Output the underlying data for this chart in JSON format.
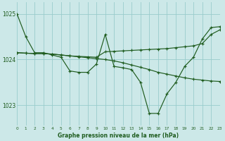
{
  "title": "Graphe pression niveau de la mer (hPa)",
  "background_color": "#cce8e8",
  "grid_color": "#99cccc",
  "line_color": "#1f5c1f",
  "xlim": [
    0,
    23
  ],
  "ylim": [
    1022.55,
    1025.25
  ],
  "yticks": [
    1023,
    1024,
    1025
  ],
  "xticks": [
    0,
    1,
    2,
    3,
    4,
    5,
    6,
    7,
    8,
    9,
    10,
    11,
    12,
    13,
    14,
    15,
    16,
    17,
    18,
    19,
    20,
    21,
    22,
    23
  ],
  "series": [
    [
      1025.0,
      1024.5,
      1024.15,
      1024.15,
      1024.1,
      1024.05,
      1023.75,
      1023.72,
      1023.72,
      1023.9,
      1024.55,
      1023.85,
      1023.82,
      1023.78,
      1023.5,
      1022.82,
      1022.82,
      1023.25,
      1023.5,
      1023.85,
      1024.05,
      1024.45,
      1024.7,
      1024.72
    ],
    [
      1024.15,
      1024.14,
      1024.13,
      1024.13,
      1024.12,
      1024.1,
      1024.08,
      1024.07,
      1024.06,
      1024.05,
      1024.17,
      1024.18,
      1024.19,
      1024.2,
      1024.21,
      1024.22,
      1024.23,
      1024.24,
      1024.26,
      1024.28,
      1024.3,
      1024.35,
      1024.55,
      1024.65
    ],
    [
      1024.15,
      1024.14,
      1024.13,
      1024.13,
      1024.12,
      1024.1,
      1024.08,
      1024.06,
      1024.04,
      1024.02,
      1024.0,
      1023.97,
      1023.93,
      1023.88,
      1023.83,
      1023.78,
      1023.72,
      1023.68,
      1023.64,
      1023.6,
      1023.57,
      1023.55,
      1023.53,
      1023.52
    ]
  ],
  "figsize": [
    3.2,
    2.0
  ],
  "dpi": 100
}
